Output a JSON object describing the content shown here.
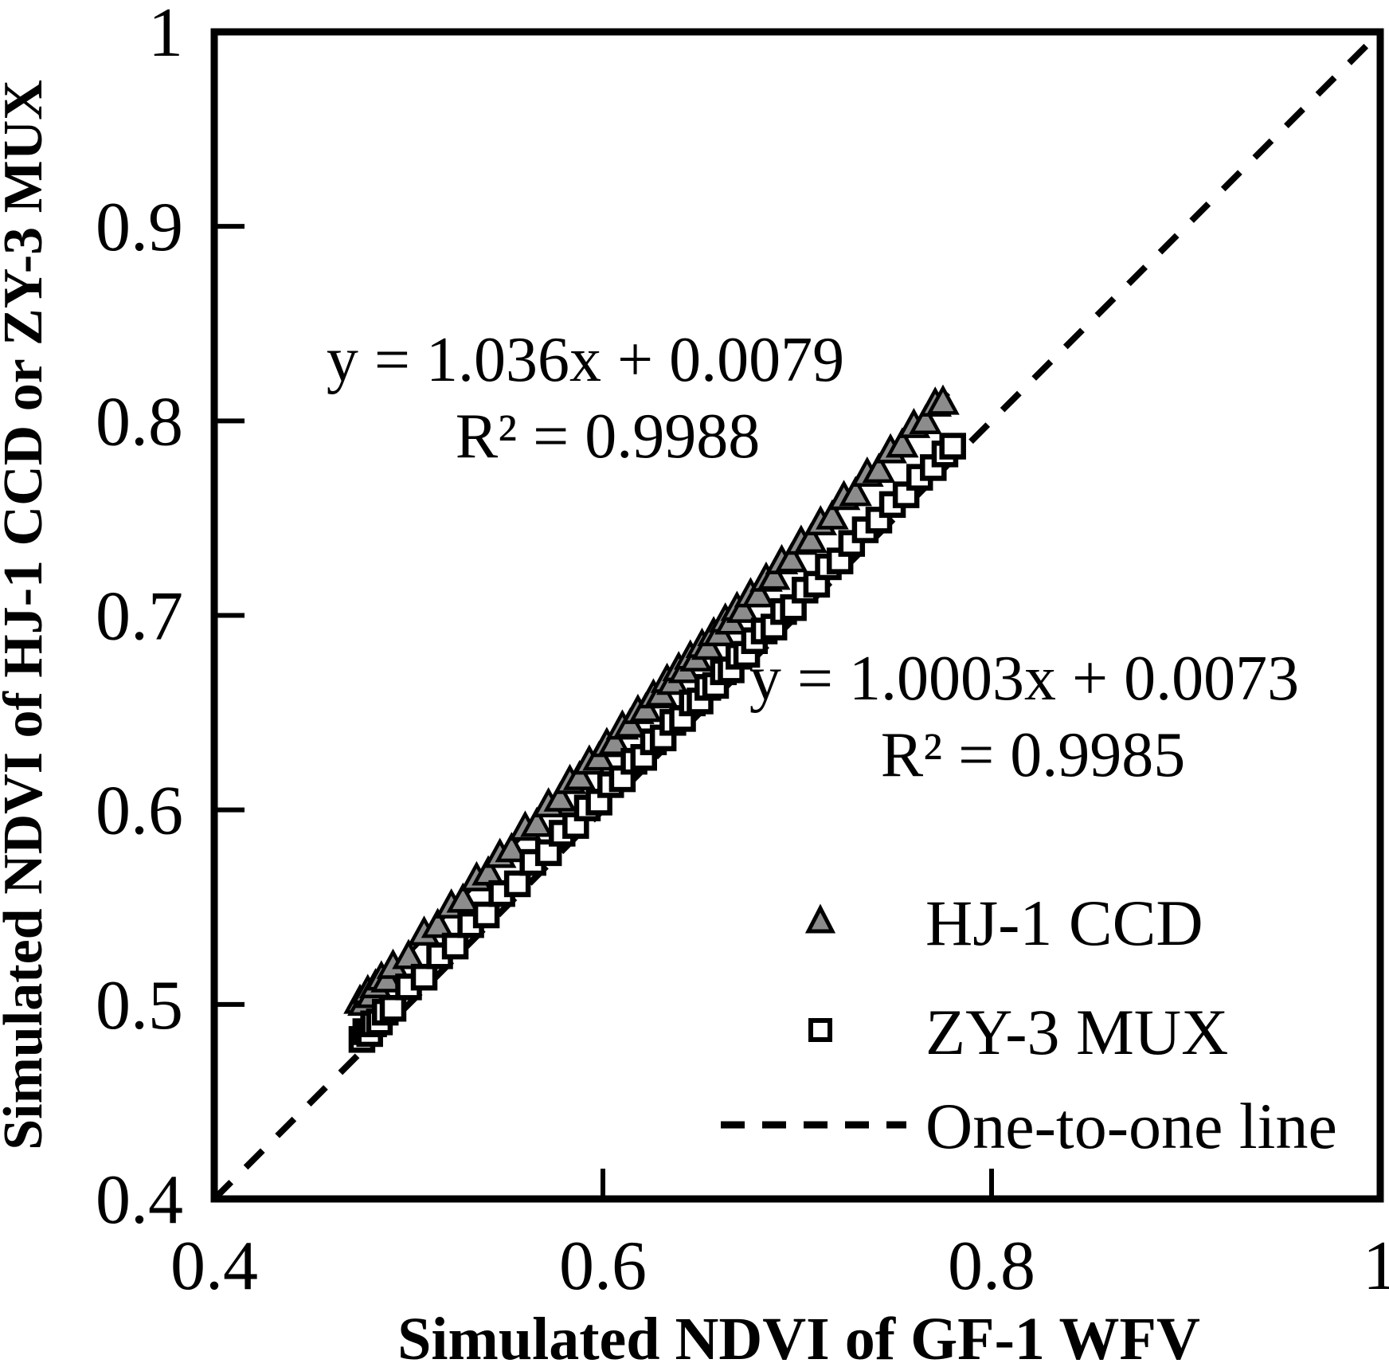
{
  "annotations": {
    "eq1_line1": "y = 1.036x + 0.0079",
    "eq1_line2": "R² = 0.9988",
    "eq2_line1": "y = 1.0003x + 0.0073",
    "eq2_line2": "R² = 0.9985"
  },
  "legend": {
    "items": [
      {
        "marker": "triangle",
        "label": "HJ-1 CCD"
      },
      {
        "marker": "square",
        "label": "ZY-3 MUX"
      },
      {
        "marker": "dashed-line",
        "label": "One-to-one line"
      }
    ]
  },
  "colors": {
    "background": "#ffffff",
    "line": "#000000",
    "triangle_fill": "#8c8c8c",
    "triangle_stroke": "#000000",
    "square_fill": "#ffffff",
    "square_stroke": "#000000"
  },
  "chart_data": {
    "type": "scatter",
    "title": "",
    "xlabel": "Simulated NDVI of GF-1 WFV",
    "ylabel": "Simulated NDVI of HJ-1 CCD or ZY-3 MUX",
    "xlim": [
      0.4,
      1.0
    ],
    "ylim": [
      0.4,
      1.0
    ],
    "grid": false,
    "legend_position": "inside lower right",
    "x_tick_values": [
      0.4,
      0.6,
      0.8,
      1.0
    ],
    "x_tick_labels": [
      "0.4",
      "0.6",
      "0.8",
      "1"
    ],
    "y_tick_values": [
      1.0,
      0.9,
      0.8,
      0.7,
      0.6,
      0.5,
      0.4
    ],
    "y_tick_labels": [
      "1",
      "0.9",
      "0.8",
      "0.7",
      "0.6",
      "0.5",
      "0.4"
    ],
    "one_to_one_line": {
      "from": [
        0.4,
        0.4
      ],
      "to": [
        1.0,
        1.0
      ],
      "style": "dashed",
      "label": "One-to-one line"
    },
    "series": [
      {
        "name": "HJ-1 CCD",
        "marker": "triangle",
        "fit": {
          "equation": "y = 1.036x + 0.0079",
          "slope": 1.036,
          "intercept": 0.0079,
          "r2": 0.9988
        },
        "trendline": {
          "from": [
            0.472,
            0.497
          ],
          "to": [
            0.778,
            0.814
          ],
          "style": "solid"
        },
        "points": [
          [
            0.475,
            0.501
          ],
          [
            0.477,
            0.5
          ],
          [
            0.479,
            0.506
          ],
          [
            0.481,
            0.504
          ],
          [
            0.483,
            0.509
          ],
          [
            0.486,
            0.513
          ],
          [
            0.489,
            0.512
          ],
          [
            0.492,
            0.519
          ],
          [
            0.5,
            0.524
          ],
          [
            0.508,
            0.536
          ],
          [
            0.515,
            0.54
          ],
          [
            0.522,
            0.55
          ],
          [
            0.528,
            0.553
          ],
          [
            0.535,
            0.564
          ],
          [
            0.541,
            0.567
          ],
          [
            0.547,
            0.576
          ],
          [
            0.553,
            0.579
          ],
          [
            0.56,
            0.59
          ],
          [
            0.566,
            0.592
          ],
          [
            0.572,
            0.602
          ],
          [
            0.578,
            0.605
          ],
          [
            0.583,
            0.614
          ],
          [
            0.588,
            0.616
          ],
          [
            0.593,
            0.624
          ],
          [
            0.598,
            0.626
          ],
          [
            0.602,
            0.633
          ],
          [
            0.606,
            0.634
          ],
          [
            0.61,
            0.642
          ],
          [
            0.614,
            0.643
          ],
          [
            0.618,
            0.65
          ],
          [
            0.622,
            0.651
          ],
          [
            0.626,
            0.658
          ],
          [
            0.63,
            0.659
          ],
          [
            0.633,
            0.666
          ],
          [
            0.636,
            0.665
          ],
          [
            0.639,
            0.672
          ],
          [
            0.642,
            0.671
          ],
          [
            0.645,
            0.678
          ],
          [
            0.648,
            0.677
          ],
          [
            0.651,
            0.684
          ],
          [
            0.654,
            0.683
          ],
          [
            0.657,
            0.69
          ],
          [
            0.66,
            0.69
          ],
          [
            0.663,
            0.697
          ],
          [
            0.666,
            0.696
          ],
          [
            0.669,
            0.703
          ],
          [
            0.672,
            0.702
          ],
          [
            0.676,
            0.71
          ],
          [
            0.68,
            0.71
          ],
          [
            0.684,
            0.718
          ],
          [
            0.688,
            0.719
          ],
          [
            0.692,
            0.727
          ],
          [
            0.697,
            0.728
          ],
          [
            0.702,
            0.737
          ],
          [
            0.707,
            0.738
          ],
          [
            0.712,
            0.747
          ],
          [
            0.718,
            0.75
          ],
          [
            0.724,
            0.76
          ],
          [
            0.73,
            0.762
          ],
          [
            0.736,
            0.772
          ],
          [
            0.742,
            0.774
          ],
          [
            0.748,
            0.784
          ],
          [
            0.754,
            0.787
          ],
          [
            0.76,
            0.797
          ],
          [
            0.766,
            0.799
          ],
          [
            0.771,
            0.808
          ],
          [
            0.775,
            0.809
          ]
        ]
      },
      {
        "name": "ZY-3 MUX",
        "marker": "square",
        "fit": {
          "equation": "y = 1.0003x + 0.0073",
          "slope": 1.0003,
          "intercept": 0.0073,
          "r2": 0.9985
        },
        "trendline": {
          "from": [
            0.472,
            0.4795
          ],
          "to": [
            0.783,
            0.7905
          ],
          "style": "solid"
        },
        "points": [
          [
            0.476,
            0.482
          ],
          [
            0.478,
            0.486
          ],
          [
            0.48,
            0.485
          ],
          [
            0.482,
            0.49
          ],
          [
            0.485,
            0.491
          ],
          [
            0.488,
            0.496
          ],
          [
            0.492,
            0.498
          ],
          [
            0.5,
            0.509
          ],
          [
            0.508,
            0.514
          ],
          [
            0.516,
            0.525
          ],
          [
            0.524,
            0.53
          ],
          [
            0.532,
            0.541
          ],
          [
            0.54,
            0.546
          ],
          [
            0.548,
            0.557
          ],
          [
            0.556,
            0.562
          ],
          [
            0.564,
            0.573
          ],
          [
            0.572,
            0.578
          ],
          [
            0.579,
            0.588
          ],
          [
            0.586,
            0.592
          ],
          [
            0.592,
            0.601
          ],
          [
            0.598,
            0.604
          ],
          [
            0.604,
            0.613
          ],
          [
            0.61,
            0.616
          ],
          [
            0.616,
            0.625
          ],
          [
            0.621,
            0.627
          ],
          [
            0.626,
            0.635
          ],
          [
            0.631,
            0.637
          ],
          [
            0.636,
            0.645
          ],
          [
            0.641,
            0.647
          ],
          [
            0.646,
            0.655
          ],
          [
            0.65,
            0.656
          ],
          [
            0.654,
            0.663
          ],
          [
            0.658,
            0.664
          ],
          [
            0.662,
            0.671
          ],
          [
            0.666,
            0.672
          ],
          [
            0.67,
            0.679
          ],
          [
            0.674,
            0.68
          ],
          [
            0.678,
            0.687
          ],
          [
            0.683,
            0.692
          ],
          [
            0.688,
            0.694
          ],
          [
            0.693,
            0.702
          ],
          [
            0.698,
            0.704
          ],
          [
            0.704,
            0.713
          ],
          [
            0.71,
            0.716
          ],
          [
            0.716,
            0.725
          ],
          [
            0.722,
            0.728
          ],
          [
            0.728,
            0.737
          ],
          [
            0.735,
            0.744
          ],
          [
            0.742,
            0.749
          ],
          [
            0.749,
            0.757
          ],
          [
            0.756,
            0.762
          ],
          [
            0.763,
            0.771
          ],
          [
            0.77,
            0.776
          ],
          [
            0.776,
            0.783
          ],
          [
            0.78,
            0.787
          ]
        ]
      }
    ]
  }
}
